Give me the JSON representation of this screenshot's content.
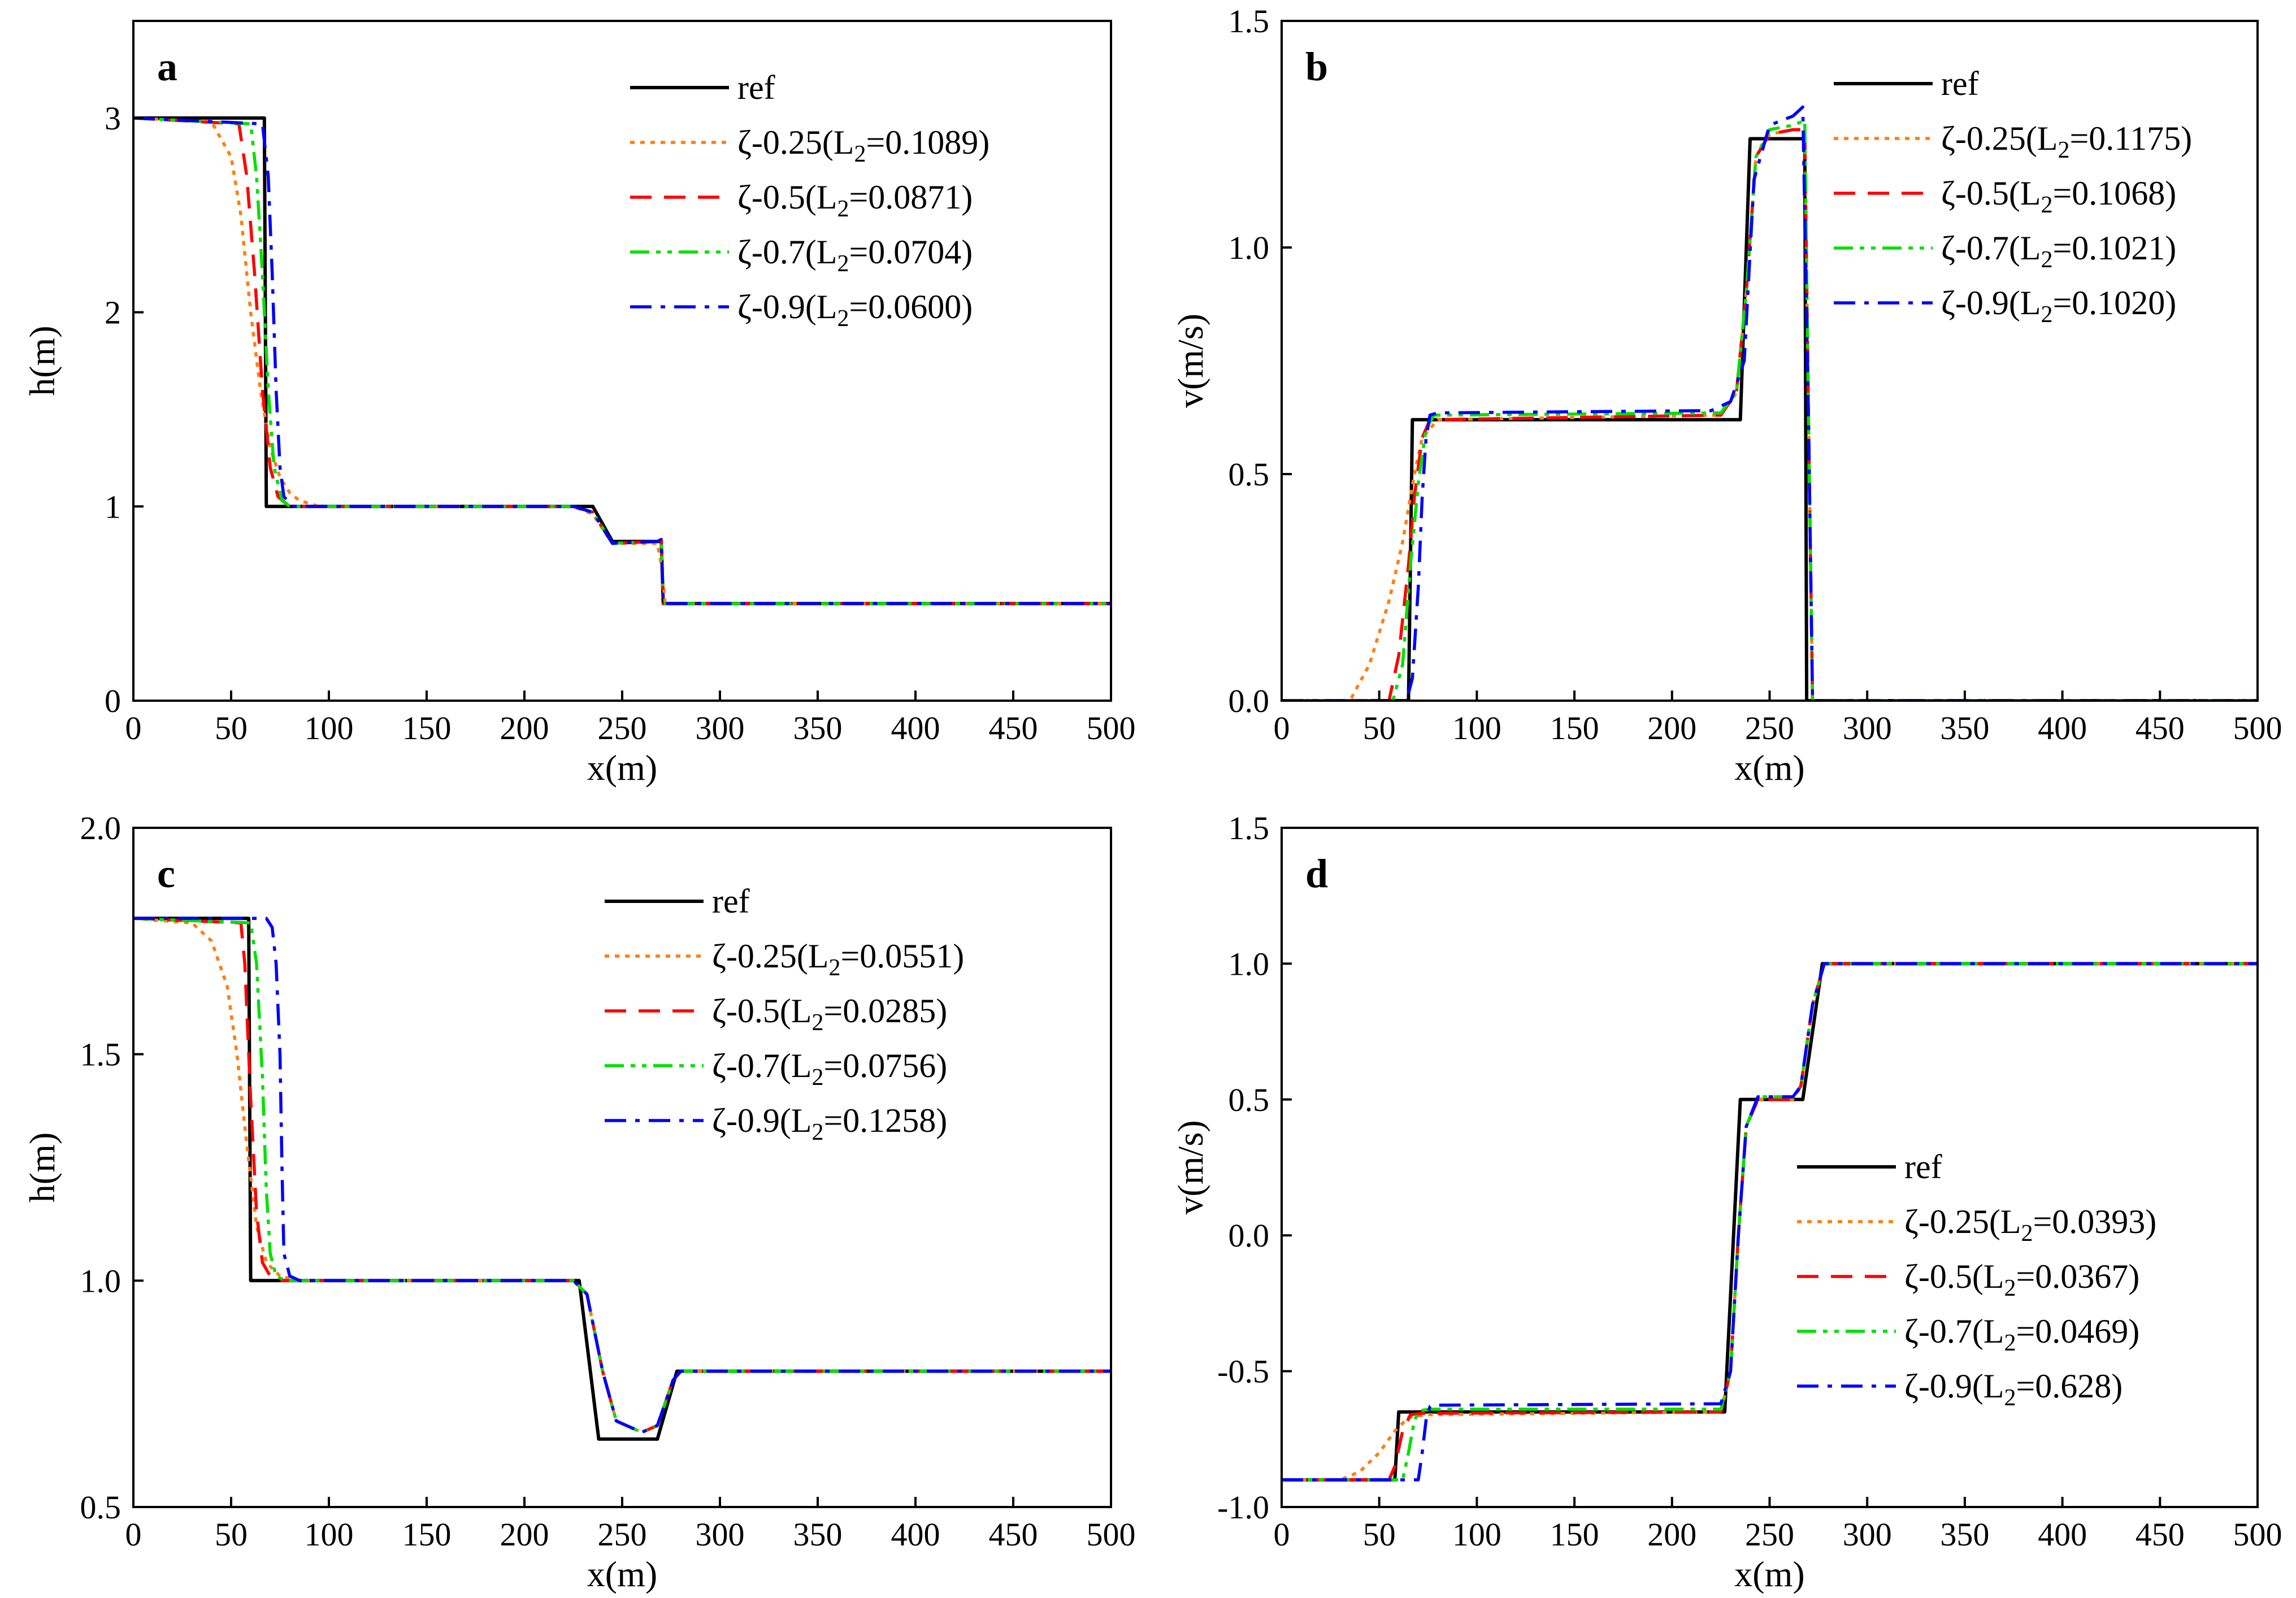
{
  "figure": {
    "panels": [
      "a",
      "b",
      "c",
      "d"
    ]
  },
  "styles": {
    "ref": {
      "color": "#000000",
      "dash": "solid"
    },
    "z025": {
      "color": "#ff7f0e",
      "dash": "dot"
    },
    "z05": {
      "color": "#ff0000",
      "dash": "dash"
    },
    "z07": {
      "color": "#00e000",
      "dash": "dashdotdot"
    },
    "z09": {
      "color": "#0000ff",
      "dash": "dashdot"
    }
  },
  "chart_data": [
    {
      "id": "a",
      "type": "line",
      "panel_label": "a",
      "xlabel": "x(m)",
      "ylabel": "h(m)",
      "xlim": [
        0,
        500
      ],
      "ylim": [
        0,
        3.5
      ],
      "xticks": [
        0,
        50,
        100,
        150,
        200,
        250,
        300,
        350,
        400,
        450,
        500
      ],
      "yticks": [
        0,
        1,
        2,
        3
      ],
      "ytick_labels": [
        "0",
        "1",
        "2",
        "3"
      ],
      "legend_position": "top-right",
      "series": [
        {
          "name": "ref",
          "legend_main": "ref",
          "legend_sub": "",
          "legend_tail": "",
          "style": "ref",
          "x": [
            0,
            67,
            68,
            235,
            245,
            270,
            271,
            500
          ],
          "y": [
            3,
            3,
            1,
            1,
            0.82,
            0.82,
            0.5,
            0.5
          ]
        },
        {
          "name": "ζ-0.25(L2=0.1089)",
          "legend_main": "ζ-0.25(L",
          "legend_sub": "2",
          "legend_tail": "=0.1089)",
          "style": "z025",
          "x": [
            0,
            40,
            50,
            55,
            60,
            65,
            70,
            75,
            80,
            85,
            95,
            225,
            235,
            245,
            268,
            270,
            272,
            500
          ],
          "y": [
            3,
            2.98,
            2.8,
            2.5,
            2.0,
            1.6,
            1.3,
            1.15,
            1.07,
            1.03,
            1.0,
            1.0,
            0.96,
            0.81,
            0.81,
            0.7,
            0.5,
            0.5
          ]
        },
        {
          "name": "ζ-0.5(L2=0.0871)",
          "legend_main": "ζ-0.5(L",
          "legend_sub": "2",
          "legend_tail": "=0.0871)",
          "style": "z05",
          "x": [
            0,
            54,
            58,
            62,
            66,
            70,
            74,
            80,
            225,
            235,
            245,
            268,
            270,
            271,
            500
          ],
          "y": [
            3,
            2.97,
            2.7,
            2.2,
            1.6,
            1.2,
            1.05,
            1.0,
            1.0,
            0.97,
            0.81,
            0.82,
            0.83,
            0.5,
            0.5
          ]
        },
        {
          "name": "ζ-0.7(L2=0.0704)",
          "legend_main": "ζ-0.7(L",
          "legend_sub": "2",
          "legend_tail": "=0.0704)",
          "style": "z07",
          "x": [
            0,
            60,
            63,
            66,
            69,
            72,
            76,
            80,
            225,
            235,
            245,
            268,
            270,
            271,
            500
          ],
          "y": [
            3,
            2.97,
            2.7,
            2.2,
            1.6,
            1.2,
            1.03,
            1.0,
            1.0,
            0.97,
            0.81,
            0.82,
            0.83,
            0.5,
            0.5
          ]
        },
        {
          "name": "ζ-0.9(L2=0.0600)",
          "legend_main": "ζ-0.9(L",
          "legend_sub": "2",
          "legend_tail": "=0.0600)",
          "style": "z09",
          "x": [
            0,
            66,
            69,
            71,
            73,
            75,
            77,
            82,
            225,
            235,
            245,
            268,
            270,
            271,
            500
          ],
          "y": [
            3,
            2.97,
            2.7,
            2.2,
            1.6,
            1.2,
            1.05,
            1.0,
            1.0,
            0.97,
            0.81,
            0.82,
            0.83,
            0.5,
            0.5
          ]
        }
      ]
    },
    {
      "id": "b",
      "type": "line",
      "panel_label": "b",
      "xlabel": "x(m)",
      "ylabel": "v(m/s)",
      "xlim": [
        0,
        500
      ],
      "ylim": [
        0,
        1.5
      ],
      "xticks": [
        0,
        50,
        100,
        150,
        200,
        250,
        300,
        350,
        400,
        450,
        500
      ],
      "yticks": [
        0,
        0.5,
        1.0,
        1.5
      ],
      "ytick_labels": [
        "0.0",
        "0.5",
        "1.0",
        "1.5"
      ],
      "legend_position": "top-right",
      "series": [
        {
          "name": "ref",
          "legend_main": "ref",
          "legend_sub": "",
          "legend_tail": "",
          "style": "ref",
          "x": [
            0,
            65,
            67,
            235,
            240,
            268,
            269,
            500
          ],
          "y": [
            0,
            0,
            0.62,
            0.62,
            1.24,
            1.24,
            0,
            0
          ]
        },
        {
          "name": "ζ-0.25(L2=0.1175)",
          "legend_main": "ζ-0.25(L",
          "legend_sub": "2",
          "legend_tail": "=0.1175)",
          "style": "z025",
          "x": [
            0,
            35,
            45,
            55,
            62,
            68,
            72,
            80,
            225,
            233,
            238,
            243,
            250,
            262,
            268,
            270,
            272,
            500
          ],
          "y": [
            0,
            0,
            0.08,
            0.22,
            0.35,
            0.5,
            0.58,
            0.62,
            0.63,
            0.68,
            0.9,
            1.2,
            1.25,
            1.26,
            1.26,
            0.6,
            0,
            0
          ]
        },
        {
          "name": "ζ-0.5(L2=0.1068)",
          "legend_main": "ζ-0.5(L",
          "legend_sub": "2",
          "legend_tail": "=0.1068)",
          "style": "z05",
          "x": [
            0,
            55,
            60,
            65,
            68,
            72,
            76,
            225,
            233,
            238,
            243,
            250,
            262,
            268,
            270,
            272,
            500
          ],
          "y": [
            0,
            0,
            0.1,
            0.3,
            0.45,
            0.58,
            0.62,
            0.63,
            0.68,
            0.9,
            1.2,
            1.25,
            1.26,
            1.26,
            0.6,
            0,
            0
          ]
        },
        {
          "name": "ζ-0.7(L2=0.1021)",
          "legend_main": "ζ-0.7(L",
          "legend_sub": "2",
          "legend_tail": "=0.1021)",
          "style": "z07",
          "x": [
            0,
            57,
            62,
            66,
            70,
            74,
            78,
            225,
            233,
            238,
            243,
            250,
            262,
            268,
            270,
            272,
            500
          ],
          "y": [
            0,
            0,
            0.08,
            0.3,
            0.48,
            0.6,
            0.63,
            0.635,
            0.68,
            0.9,
            1.2,
            1.26,
            1.27,
            1.28,
            0.6,
            0,
            0
          ]
        },
        {
          "name": "ζ-0.9(L2=0.1020)",
          "legend_main": "ζ-0.9(L",
          "legend_sub": "2",
          "legend_tail": "=0.1020)",
          "style": "z09",
          "x": [
            0,
            64,
            67,
            70,
            72,
            74,
            76,
            80,
            220,
            230,
            237,
            242,
            250,
            262,
            267,
            270,
            272,
            500
          ],
          "y": [
            0,
            0,
            0.05,
            0.25,
            0.45,
            0.58,
            0.63,
            0.635,
            0.64,
            0.66,
            0.75,
            1.15,
            1.27,
            1.29,
            1.31,
            0.6,
            0,
            0
          ]
        }
      ]
    },
    {
      "id": "c",
      "type": "line",
      "panel_label": "c",
      "xlabel": "x(m)",
      "ylabel": "h(m)",
      "xlim": [
        0,
        500
      ],
      "ylim": [
        0.5,
        2.0
      ],
      "xticks": [
        0,
        50,
        100,
        150,
        200,
        250,
        300,
        350,
        400,
        450,
        500
      ],
      "yticks": [
        0.5,
        1.0,
        1.5,
        2.0
      ],
      "ytick_labels": [
        "0.5",
        "1.0",
        "1.5",
        "2.0"
      ],
      "legend_position": "top-right",
      "series": [
        {
          "name": "ref",
          "legend_main": "ref",
          "legend_sub": "",
          "legend_tail": "",
          "style": "ref",
          "x": [
            0,
            59,
            60,
            228,
            238,
            268,
            278,
            500
          ],
          "y": [
            1.8,
            1.8,
            1.0,
            1.0,
            0.65,
            0.65,
            0.8,
            0.8
          ]
        },
        {
          "name": "ζ-0.25(L2=0.0551)",
          "legend_main": "ζ-0.25(L",
          "legend_sub": "2",
          "legend_tail": "=0.0551)",
          "style": "z025",
          "x": [
            0,
            30,
            40,
            48,
            53,
            58,
            63,
            68,
            75,
            85,
            225,
            232,
            240,
            247,
            260,
            268,
            276,
            280,
            500
          ],
          "y": [
            1.8,
            1.79,
            1.75,
            1.65,
            1.5,
            1.3,
            1.12,
            1.04,
            1.01,
            1.0,
            1.0,
            0.97,
            0.8,
            0.69,
            0.665,
            0.68,
            0.78,
            0.8,
            0.8
          ]
        },
        {
          "name": "ζ-0.5(L2=0.0285)",
          "legend_main": "ζ-0.5(L",
          "legend_sub": "2",
          "legend_tail": "=0.0285)",
          "style": "z05",
          "x": [
            0,
            55,
            57,
            60,
            63,
            66,
            70,
            76,
            225,
            232,
            240,
            247,
            260,
            268,
            276,
            280,
            500
          ],
          "y": [
            1.8,
            1.79,
            1.7,
            1.4,
            1.15,
            1.04,
            1.01,
            1.0,
            1.0,
            0.97,
            0.8,
            0.69,
            0.665,
            0.68,
            0.78,
            0.8,
            0.8
          ]
        },
        {
          "name": "ζ-0.7(L2=0.0756)",
          "legend_main": "ζ-0.7(L",
          "legend_sub": "2",
          "legend_tail": "=0.0756)",
          "style": "z07",
          "x": [
            0,
            60,
            63,
            66,
            68,
            70,
            73,
            78,
            225,
            232,
            240,
            247,
            260,
            268,
            276,
            280,
            500
          ],
          "y": [
            1.8,
            1.79,
            1.7,
            1.45,
            1.2,
            1.06,
            1.01,
            1.0,
            1.0,
            0.97,
            0.8,
            0.69,
            0.665,
            0.68,
            0.78,
            0.8,
            0.8
          ]
        },
        {
          "name": "ζ-0.9(L2=0.1258)",
          "legend_main": "ζ-0.9(L",
          "legend_sub": "2",
          "legend_tail": "=0.1258)",
          "style": "z09",
          "x": [
            0,
            68,
            71,
            73,
            75,
            76,
            77,
            80,
            85,
            225,
            232,
            240,
            247,
            260,
            268,
            276,
            280,
            500
          ],
          "y": [
            1.8,
            1.8,
            1.78,
            1.7,
            1.5,
            1.25,
            1.06,
            1.01,
            1.0,
            1.0,
            0.97,
            0.8,
            0.69,
            0.665,
            0.68,
            0.78,
            0.8,
            0.8
          ]
        }
      ]
    },
    {
      "id": "d",
      "type": "line",
      "panel_label": "d",
      "xlabel": "x(m)",
      "ylabel": "v(m/s)",
      "xlim": [
        0,
        500
      ],
      "ylim": [
        -1.0,
        1.5
      ],
      "xticks": [
        0,
        50,
        100,
        150,
        200,
        250,
        300,
        350,
        400,
        450,
        500
      ],
      "yticks": [
        -1.0,
        -0.5,
        0.0,
        0.5,
        1.0,
        1.5
      ],
      "ytick_labels": [
        "-1.0",
        "-0.5",
        "0.0",
        "0.5",
        "1.0",
        "1.5"
      ],
      "legend_position": "bottom-right",
      "series": [
        {
          "name": "ref",
          "legend_main": "ref",
          "legend_sub": "",
          "legend_tail": "",
          "style": "ref",
          "x": [
            0,
            58,
            60,
            227,
            235,
            267,
            277,
            500
          ],
          "y": [
            -0.9,
            -0.9,
            -0.65,
            -0.65,
            0.5,
            0.5,
            1.0,
            1.0
          ]
        },
        {
          "name": "ζ-0.25(L2=0.0393)",
          "legend_main": "ζ-0.25(L",
          "legend_sub": "2",
          "legend_tail": "=0.0393)",
          "style": "z025",
          "x": [
            0,
            30,
            40,
            50,
            58,
            65,
            75,
            225,
            230,
            234,
            238,
            244,
            262,
            266,
            272,
            278,
            500
          ],
          "y": [
            -0.9,
            -0.9,
            -0.87,
            -0.8,
            -0.72,
            -0.67,
            -0.66,
            -0.65,
            -0.5,
            0.0,
            0.4,
            0.5,
            0.5,
            0.55,
            0.85,
            1.0,
            1.0
          ]
        },
        {
          "name": "ζ-0.5(L2=0.0367)",
          "legend_main": "ζ-0.5(L",
          "legend_sub": "2",
          "legend_tail": "=0.0367)",
          "style": "z05",
          "x": [
            0,
            55,
            58,
            62,
            66,
            72,
            225,
            230,
            234,
            238,
            244,
            262,
            266,
            272,
            278,
            500
          ],
          "y": [
            -0.9,
            -0.9,
            -0.85,
            -0.72,
            -0.66,
            -0.655,
            -0.65,
            -0.5,
            0.0,
            0.4,
            0.5,
            0.5,
            0.55,
            0.85,
            1.0,
            1.0
          ]
        },
        {
          "name": "ζ-0.7(L2=0.0469)",
          "legend_main": "ζ-0.7(L",
          "legend_sub": "2",
          "legend_tail": "=0.0469)",
          "style": "z07",
          "x": [
            0,
            62,
            65,
            68,
            71,
            76,
            225,
            230,
            234,
            238,
            244,
            262,
            266,
            272,
            278,
            500
          ],
          "y": [
            -0.9,
            -0.9,
            -0.8,
            -0.68,
            -0.645,
            -0.64,
            -0.64,
            -0.5,
            0.0,
            0.4,
            0.51,
            0.51,
            0.55,
            0.85,
            1.0,
            1.0
          ]
        },
        {
          "name": "ζ-0.9(L2=0.628)",
          "legend_main": "ζ-0.9(L",
          "legend_sub": "2",
          "legend_tail": "=0.628)",
          "style": "z09",
          "x": [
            0,
            70,
            72,
            74,
            76,
            80,
            225,
            230,
            234,
            238,
            244,
            262,
            266,
            272,
            278,
            500
          ],
          "y": [
            -0.9,
            -0.9,
            -0.8,
            -0.68,
            -0.63,
            -0.625,
            -0.62,
            -0.5,
            0.0,
            0.4,
            0.51,
            0.51,
            0.55,
            0.85,
            1.0,
            1.0
          ]
        }
      ]
    }
  ]
}
